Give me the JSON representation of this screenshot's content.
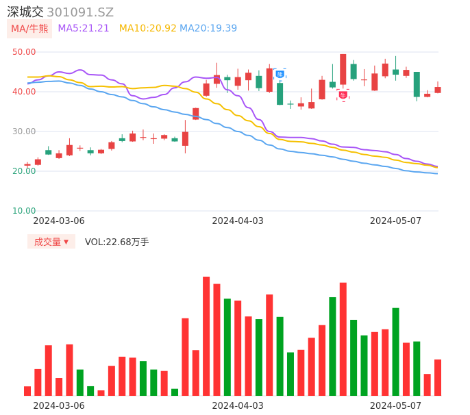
{
  "header": {
    "name": "深城交",
    "code": "301091.SZ"
  },
  "legend": {
    "badge": "MA/牛熊",
    "ma5": "MA5:21.21",
    "ma10": "MA10:20.92",
    "ma20": "MA20:19.39"
  },
  "volume_legend": {
    "badge": "成交量",
    "arrow": "▼",
    "value": "VOL:22.68万手"
  },
  "colors": {
    "up": "#e84343",
    "down": "#26a17c",
    "vol_up": "#ff3333",
    "vol_down": "#00a321",
    "ma5": "#a855f7",
    "ma10": "#f5c000",
    "ma20": "#5aa6f0",
    "grid": "#dde3f0"
  },
  "chart_data": [
    {
      "type": "candlestick",
      "ylim": [
        10,
        50
      ],
      "yticks": [
        {
          "value": 50,
          "label": "50.00",
          "color": "#f04848"
        },
        {
          "value": 40,
          "label": "40.00",
          "color": "#f04848"
        },
        {
          "value": 30,
          "label": "30.00",
          "color": "#999999"
        },
        {
          "value": 20,
          "label": "20.00",
          "color": "#2aa37a"
        },
        {
          "value": 10,
          "label": "10.00",
          "color": "#2aa37a"
        }
      ],
      "xticks": [
        {
          "index": 3,
          "label": "2024-03-06"
        },
        {
          "index": 20,
          "label": "2024-04-03"
        },
        {
          "index": 35,
          "label": "2024-05-07"
        }
      ],
      "ohlc": [
        [
          21.4,
          22.3,
          20.8,
          21.8
        ],
        [
          21.6,
          23.5,
          21.4,
          23.0
        ],
        [
          25.3,
          26.3,
          24.1,
          24.2
        ],
        [
          23.3,
          25.3,
          23.1,
          24.5
        ],
        [
          24.0,
          28.3,
          23.8,
          26.6
        ],
        [
          25.8,
          26.5,
          25.1,
          25.9
        ],
        [
          25.3,
          26.0,
          24.0,
          24.5
        ],
        [
          24.5,
          25.6,
          24.3,
          25.4
        ],
        [
          25.6,
          27.6,
          25.2,
          27.3
        ],
        [
          28.3,
          29.3,
          27.3,
          27.6
        ],
        [
          27.5,
          30.2,
          27.4,
          29.5
        ],
        [
          28.5,
          30.5,
          27.8,
          28.6
        ],
        [
          28.2,
          29.5,
          26.9,
          28.3
        ],
        [
          28.2,
          29.3,
          27.8,
          29.1
        ],
        [
          28.3,
          28.7,
          27.4,
          27.5
        ],
        [
          26.4,
          32.9,
          24.5,
          29.9
        ],
        [
          33.0,
          36.0,
          32.9,
          35.9
        ],
        [
          39.0,
          43.0,
          38.7,
          42.1
        ],
        [
          42.0,
          47.3,
          41.0,
          44.2
        ],
        [
          43.7,
          44.3,
          39.7,
          42.9
        ],
        [
          41.5,
          45.8,
          40.5,
          43.7
        ],
        [
          42.9,
          45.6,
          40.3,
          44.8
        ],
        [
          44.0,
          45.4,
          40.2,
          40.9
        ],
        [
          40.0,
          47.0,
          39.7,
          45.9
        ],
        [
          42.2,
          42.9,
          36.6,
          36.7
        ],
        [
          37.0,
          37.8,
          35.7,
          36.9
        ],
        [
          36.3,
          38.6,
          35.5,
          37.1
        ],
        [
          35.8,
          40.8,
          35.7,
          37.4
        ],
        [
          38.1,
          44.0,
          38.0,
          43.0
        ],
        [
          42.5,
          47.0,
          40.8,
          41.1
        ],
        [
          41.8,
          49.5,
          40.8,
          49.5
        ],
        [
          47.0,
          48.0,
          42.8,
          43.2
        ],
        [
          42.9,
          45.7,
          41.4,
          43.1
        ],
        [
          40.3,
          46.6,
          40.2,
          44.6
        ],
        [
          43.9,
          48.3,
          43.4,
          47.1
        ],
        [
          45.6,
          49.0,
          42.8,
          44.3
        ],
        [
          44.0,
          46.3,
          43.5,
          45.5
        ],
        [
          45.0,
          45.0,
          37.6,
          38.7
        ],
        [
          38.7,
          40.4,
          38.6,
          39.5
        ],
        [
          39.7,
          42.6,
          39.6,
          41.2
        ]
      ],
      "series": [
        {
          "name": "MA5",
          "values": [
            42.0,
            43.0,
            44.0,
            45.0,
            44.6,
            45.5,
            44.3,
            44.2,
            43.0,
            42.0,
            39.0,
            38.2,
            38.6,
            39.3,
            41.0,
            42.5,
            43.7,
            43.4,
            43.6,
            40.5,
            39.0,
            36.0,
            33.0,
            30.0,
            28.6,
            28.5,
            28.5,
            28.2,
            27.6,
            26.8,
            26.1,
            26.0,
            25.4,
            25.2,
            24.9,
            24.2,
            23.2,
            22.5,
            21.8,
            21.21
          ]
        },
        {
          "name": "MA10",
          "values": [
            43.7,
            43.7,
            44.0,
            43.8,
            43.0,
            42.3,
            41.3,
            41.4,
            41.2,
            41.3,
            40.8,
            41.0,
            41.1,
            41.6,
            41.4,
            40.8,
            39.9,
            38.2,
            37.0,
            35.5,
            34.0,
            32.7,
            31.2,
            29.5,
            28.0,
            27.5,
            27.4,
            27.0,
            26.6,
            26.0,
            25.3,
            24.8,
            24.2,
            23.8,
            23.5,
            22.8,
            22.2,
            21.9,
            21.5,
            20.92
          ]
        },
        {
          "name": "MA20",
          "values": [
            42.2,
            42.4,
            42.6,
            42.7,
            42.2,
            41.6,
            40.7,
            40.0,
            39.3,
            38.7,
            37.8,
            37.0,
            36.2,
            35.5,
            34.9,
            34.3,
            33.8,
            33.0,
            32.0,
            31.0,
            30.0,
            29.0,
            27.8,
            26.6,
            25.6,
            25.0,
            24.7,
            24.4,
            24.0,
            23.6,
            23.0,
            22.5,
            22.0,
            21.6,
            21.2,
            20.7,
            20.1,
            19.8,
            19.6,
            19.39
          ]
        }
      ],
      "markers": [
        {
          "index": 24,
          "label": "熊",
          "type": "bear",
          "color": "#1e90ff",
          "position": "above"
        },
        {
          "index": 30,
          "label": "牛",
          "type": "bull",
          "color": "#ff2d55",
          "position": "below"
        }
      ]
    },
    {
      "type": "bar",
      "unit": "万手",
      "xticks": [
        {
          "index": 3,
          "label": "2024-03-06"
        },
        {
          "index": 20,
          "label": "2024-04-03"
        },
        {
          "index": 35,
          "label": "2024-05-07"
        }
      ],
      "values": [
        5.9,
        16.7,
        31.5,
        11.1,
        32.1,
        16.4,
        6.0,
        3.4,
        18.7,
        24.4,
        23.8,
        21.7,
        16.4,
        15.5,
        4.4,
        48.4,
        28.5,
        74.3,
        69.8,
        60.6,
        59.4,
        49.5,
        47.8,
        63.2,
        49.2,
        27.1,
        28.7,
        36.2,
        44.1,
        61.5,
        70.6,
        47.4,
        37.7,
        39.8,
        41.5,
        54.8,
        33.1,
        33.9,
        13.6,
        22.68
      ],
      "directions": [
        "up",
        "up",
        "up",
        "up",
        "up",
        "down",
        "down",
        "up",
        "up",
        "up",
        "up",
        "down",
        "down",
        "up",
        "down",
        "up",
        "up",
        "up",
        "up",
        "down",
        "up",
        "up",
        "down",
        "up",
        "down",
        "down",
        "up",
        "up",
        "up",
        "down",
        "up",
        "down",
        "down",
        "up",
        "up",
        "down",
        "up",
        "down",
        "up",
        "up"
      ]
    }
  ]
}
